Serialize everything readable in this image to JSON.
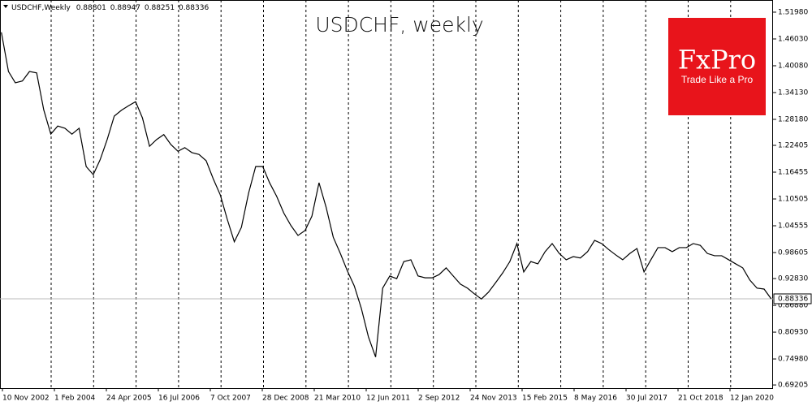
{
  "chart_data": {
    "type": "line",
    "title": "USDCHF, weekly",
    "header": {
      "symbol": "USDCHF,Weekly",
      "open": 0.88801,
      "high": 0.88947,
      "low": 0.88251,
      "close": 0.88336
    },
    "logo": {
      "brand": "FxPro",
      "tagline": "Trade Like a Pro"
    },
    "color": "#000000",
    "last_price": 0.88336,
    "x": [
      "2002-11-01",
      "2003-01-01",
      "2003-03-01",
      "2003-05-01",
      "2003-07-01",
      "2003-09-01",
      "2003-11-01",
      "2004-01-01",
      "2004-03-01",
      "2004-05-01",
      "2004-07-01",
      "2004-09-01",
      "2004-11-01",
      "2005-01-01",
      "2005-03-01",
      "2005-05-01",
      "2005-07-01",
      "2005-09-01",
      "2005-11-01",
      "2006-01-01",
      "2006-03-01",
      "2006-05-01",
      "2006-07-01",
      "2006-09-01",
      "2006-11-01",
      "2007-01-01",
      "2007-03-01",
      "2007-05-01",
      "2007-07-01",
      "2007-09-01",
      "2007-11-01",
      "2008-01-01",
      "2008-03-01",
      "2008-05-01",
      "2008-07-01",
      "2008-09-01",
      "2008-11-01",
      "2009-01-01",
      "2009-03-01",
      "2009-05-01",
      "2009-07-01",
      "2009-09-01",
      "2009-11-01",
      "2010-01-01",
      "2010-03-01",
      "2010-05-01",
      "2010-07-01",
      "2010-09-01",
      "2010-11-01",
      "2011-01-01",
      "2011-03-01",
      "2011-05-01",
      "2011-07-01",
      "2011-09-01",
      "2011-11-01",
      "2012-01-01",
      "2012-03-01",
      "2012-05-01",
      "2012-07-01",
      "2012-09-01",
      "2012-11-01",
      "2013-01-01",
      "2013-03-01",
      "2013-05-01",
      "2013-07-01",
      "2013-09-01",
      "2013-11-01",
      "2014-01-01",
      "2014-03-01",
      "2014-05-01",
      "2014-07-01",
      "2014-09-01",
      "2014-11-01",
      "2015-01-01",
      "2015-03-01",
      "2015-05-01",
      "2015-07-01",
      "2015-09-01",
      "2015-11-01",
      "2016-01-01",
      "2016-03-01",
      "2016-05-01",
      "2016-07-01",
      "2016-09-01",
      "2016-11-01",
      "2017-01-01",
      "2017-03-01",
      "2017-05-01",
      "2017-07-01",
      "2017-09-01",
      "2017-11-01",
      "2018-01-01",
      "2018-03-01",
      "2018-05-01",
      "2018-07-01",
      "2018-09-01",
      "2018-11-01",
      "2019-01-01",
      "2019-03-01",
      "2019-05-01",
      "2019-07-01",
      "2019-09-01",
      "2019-11-01",
      "2020-01-01",
      "2020-03-01",
      "2020-05-01",
      "2020-07-01",
      "2020-09-01",
      "2020-11-01",
      "2021-01-01"
    ],
    "values": [
      1.475,
      1.388,
      1.363,
      1.367,
      1.388,
      1.385,
      1.303,
      1.249,
      1.267,
      1.262,
      1.249,
      1.262,
      1.177,
      1.159,
      1.192,
      1.237,
      1.289,
      1.302,
      1.312,
      1.321,
      1.285,
      1.222,
      1.237,
      1.248,
      1.226,
      1.211,
      1.219,
      1.208,
      1.204,
      1.19,
      1.15,
      1.114,
      1.06,
      1.01,
      1.042,
      1.118,
      1.177,
      1.177,
      1.141,
      1.111,
      1.074,
      1.046,
      1.024,
      1.035,
      1.067,
      1.141,
      1.087,
      1.02,
      0.984,
      0.945,
      0.912,
      0.862,
      0.799,
      0.754,
      0.907,
      0.934,
      0.928,
      0.966,
      0.97,
      0.934,
      0.93,
      0.93,
      0.937,
      0.952,
      0.934,
      0.916,
      0.907,
      0.894,
      0.883,
      0.898,
      0.919,
      0.941,
      0.966,
      1.006,
      0.943,
      0.966,
      0.961,
      0.988,
      1.006,
      0.984,
      0.97,
      0.977,
      0.974,
      0.988,
      1.013,
      1.006,
      0.993,
      0.981,
      0.97,
      0.984,
      0.995,
      0.943,
      0.97,
      0.997,
      0.997,
      0.988,
      0.997,
      0.997,
      1.006,
      1.002,
      0.984,
      0.979,
      0.979,
      0.97,
      0.961,
      0.952,
      0.925,
      0.907,
      0.905,
      0.88336
    ],
    "ylim": [
      0.685,
      1.5468
    ],
    "yticks": [
      {
        "value": 1.5198,
        "label": "1.51980"
      },
      {
        "value": 1.4603,
        "label": "1.46030"
      },
      {
        "value": 1.4008,
        "label": "1.40080"
      },
      {
        "value": 1.3413,
        "label": "1.34130"
      },
      {
        "value": 1.2818,
        "label": "1.28180"
      },
      {
        "value": 1.22405,
        "label": "1.22405"
      },
      {
        "value": 1.16455,
        "label": "1.16455"
      },
      {
        "value": 1.10505,
        "label": "1.10505"
      },
      {
        "value": 1.04555,
        "label": "1.04555"
      },
      {
        "value": 0.98605,
        "label": "0.98605"
      },
      {
        "value": 0.9283,
        "label": "0.92830"
      },
      {
        "value": 0.8688,
        "label": "0.86880"
      },
      {
        "value": 0.8093,
        "label": "0.80930"
      },
      {
        "value": 0.7498,
        "label": "0.74980"
      },
      {
        "value": 0.69205,
        "label": "0.69205"
      }
    ],
    "xticks": [
      {
        "value": "2002-11-10",
        "label": "10 Nov 2002"
      },
      {
        "value": "2004-02-01",
        "label": "1 Feb 2004"
      },
      {
        "value": "2005-04-24",
        "label": "24 Apr 2005"
      },
      {
        "value": "2006-07-16",
        "label": "16 Jul 2006"
      },
      {
        "value": "2007-10-07",
        "label": "7 Oct 2007"
      },
      {
        "value": "2008-12-28",
        "label": "28 Dec 2008"
      },
      {
        "value": "2010-03-21",
        "label": "21 Mar 2010"
      },
      {
        "value": "2011-06-12",
        "label": "12 Jun 2011"
      },
      {
        "value": "2012-09-02",
        "label": "2 Sep 2012"
      },
      {
        "value": "2013-11-24",
        "label": "24 Nov 2013"
      },
      {
        "value": "2015-02-15",
        "label": "15 Feb 2015"
      },
      {
        "value": "2016-05-08",
        "label": "8 May 2016"
      },
      {
        "value": "2017-07-30",
        "label": "30 Jul 2017"
      },
      {
        "value": "2018-10-21",
        "label": "21 Oct 2018"
      },
      {
        "value": "2020-01-12",
        "label": "12 Jan 2020"
      }
    ]
  }
}
